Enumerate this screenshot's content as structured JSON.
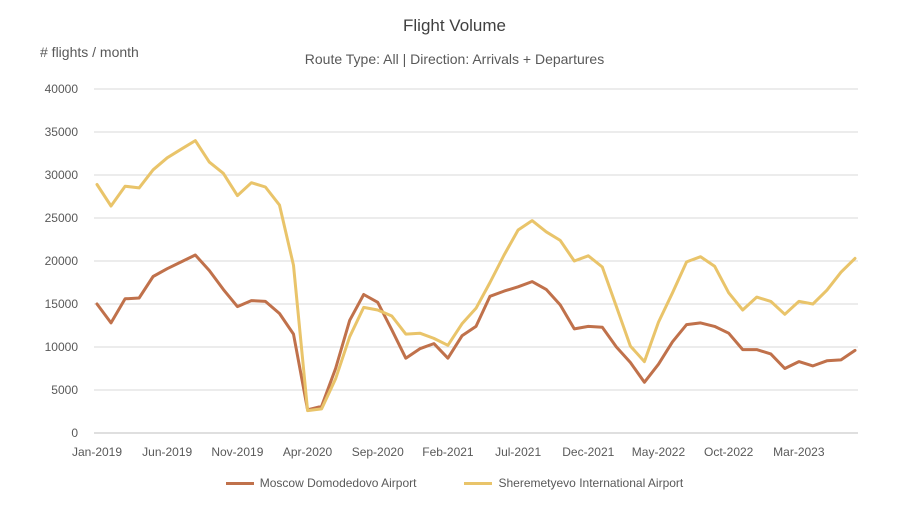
{
  "chart_data": {
    "type": "line",
    "title": "Flight Volume",
    "subtitle": "Route Type: All | Direction: Arrivals + Departures",
    "ylabel": "# flights / month",
    "xlabel": "",
    "ylim": [
      0,
      40000
    ],
    "yticks": [
      0,
      5000,
      10000,
      15000,
      20000,
      25000,
      30000,
      35000,
      40000
    ],
    "xtick_labels": [
      "Jan-2019",
      "Jun-2019",
      "Nov-2019",
      "Apr-2020",
      "Sep-2020",
      "Feb-2021",
      "Jul-2021",
      "Dec-2021",
      "May-2022",
      "Oct-2022",
      "Mar-2023"
    ],
    "xtick_index": [
      0,
      5,
      10,
      15,
      20,
      25,
      30,
      35,
      40,
      45,
      50
    ],
    "grid": true,
    "legend_position": "bottom",
    "x": [
      "2019-01",
      "2019-02",
      "2019-03",
      "2019-04",
      "2019-05",
      "2019-06",
      "2019-07",
      "2019-08",
      "2019-09",
      "2019-10",
      "2019-11",
      "2019-12",
      "2020-01",
      "2020-02",
      "2020-03",
      "2020-04",
      "2020-05",
      "2020-06",
      "2020-07",
      "2020-08",
      "2020-09",
      "2020-10",
      "2020-11",
      "2020-12",
      "2021-01",
      "2021-02",
      "2021-03",
      "2021-04",
      "2021-05",
      "2021-06",
      "2021-07",
      "2021-08",
      "2021-09",
      "2021-10",
      "2021-11",
      "2021-12",
      "2022-01",
      "2022-02",
      "2022-03",
      "2022-04",
      "2022-05",
      "2022-06",
      "2022-07",
      "2022-08",
      "2022-09",
      "2022-10",
      "2022-11",
      "2022-12",
      "2023-01",
      "2023-02",
      "2023-03",
      "2023-04",
      "2023-05",
      "2023-06",
      "2023-07"
    ],
    "series": [
      {
        "name": "Moscow Domodedovo Airport",
        "color": "#C0714B",
        "values": [
          15000,
          12800,
          15600,
          15700,
          18200,
          19100,
          19900,
          20700,
          18900,
          16700,
          14700,
          15400,
          15300,
          13900,
          11500,
          2700,
          3100,
          7500,
          13100,
          16100,
          15200,
          12000,
          8700,
          9800,
          10400,
          8700,
          11300,
          12400,
          15900,
          16500,
          17000,
          17600,
          16700,
          14900,
          12100,
          12400,
          12300,
          10000,
          8200,
          5900,
          8000,
          10600,
          12600,
          12800,
          12400,
          11600,
          9700,
          9700,
          9200,
          7500,
          8300,
          7800,
          8400,
          8500,
          9600
        ]
      },
      {
        "name": "Sheremetyevo International Airport",
        "color": "#E9C46A",
        "values": [
          28900,
          26400,
          28700,
          28500,
          30600,
          32000,
          33000,
          34000,
          31500,
          30200,
          27600,
          29100,
          28600,
          26500,
          19500,
          2600,
          2800,
          6300,
          11200,
          14600,
          14300,
          13600,
          11500,
          11600,
          11000,
          10200,
          12700,
          14500,
          17500,
          20700,
          23600,
          24700,
          23400,
          22400,
          20000,
          20600,
          19300,
          14700,
          10100,
          8300,
          12900,
          16300,
          19900,
          20500,
          19400,
          16300,
          14300,
          15800,
          15300,
          13800,
          15300,
          15000,
          16600,
          18700,
          20300
        ]
      }
    ]
  }
}
